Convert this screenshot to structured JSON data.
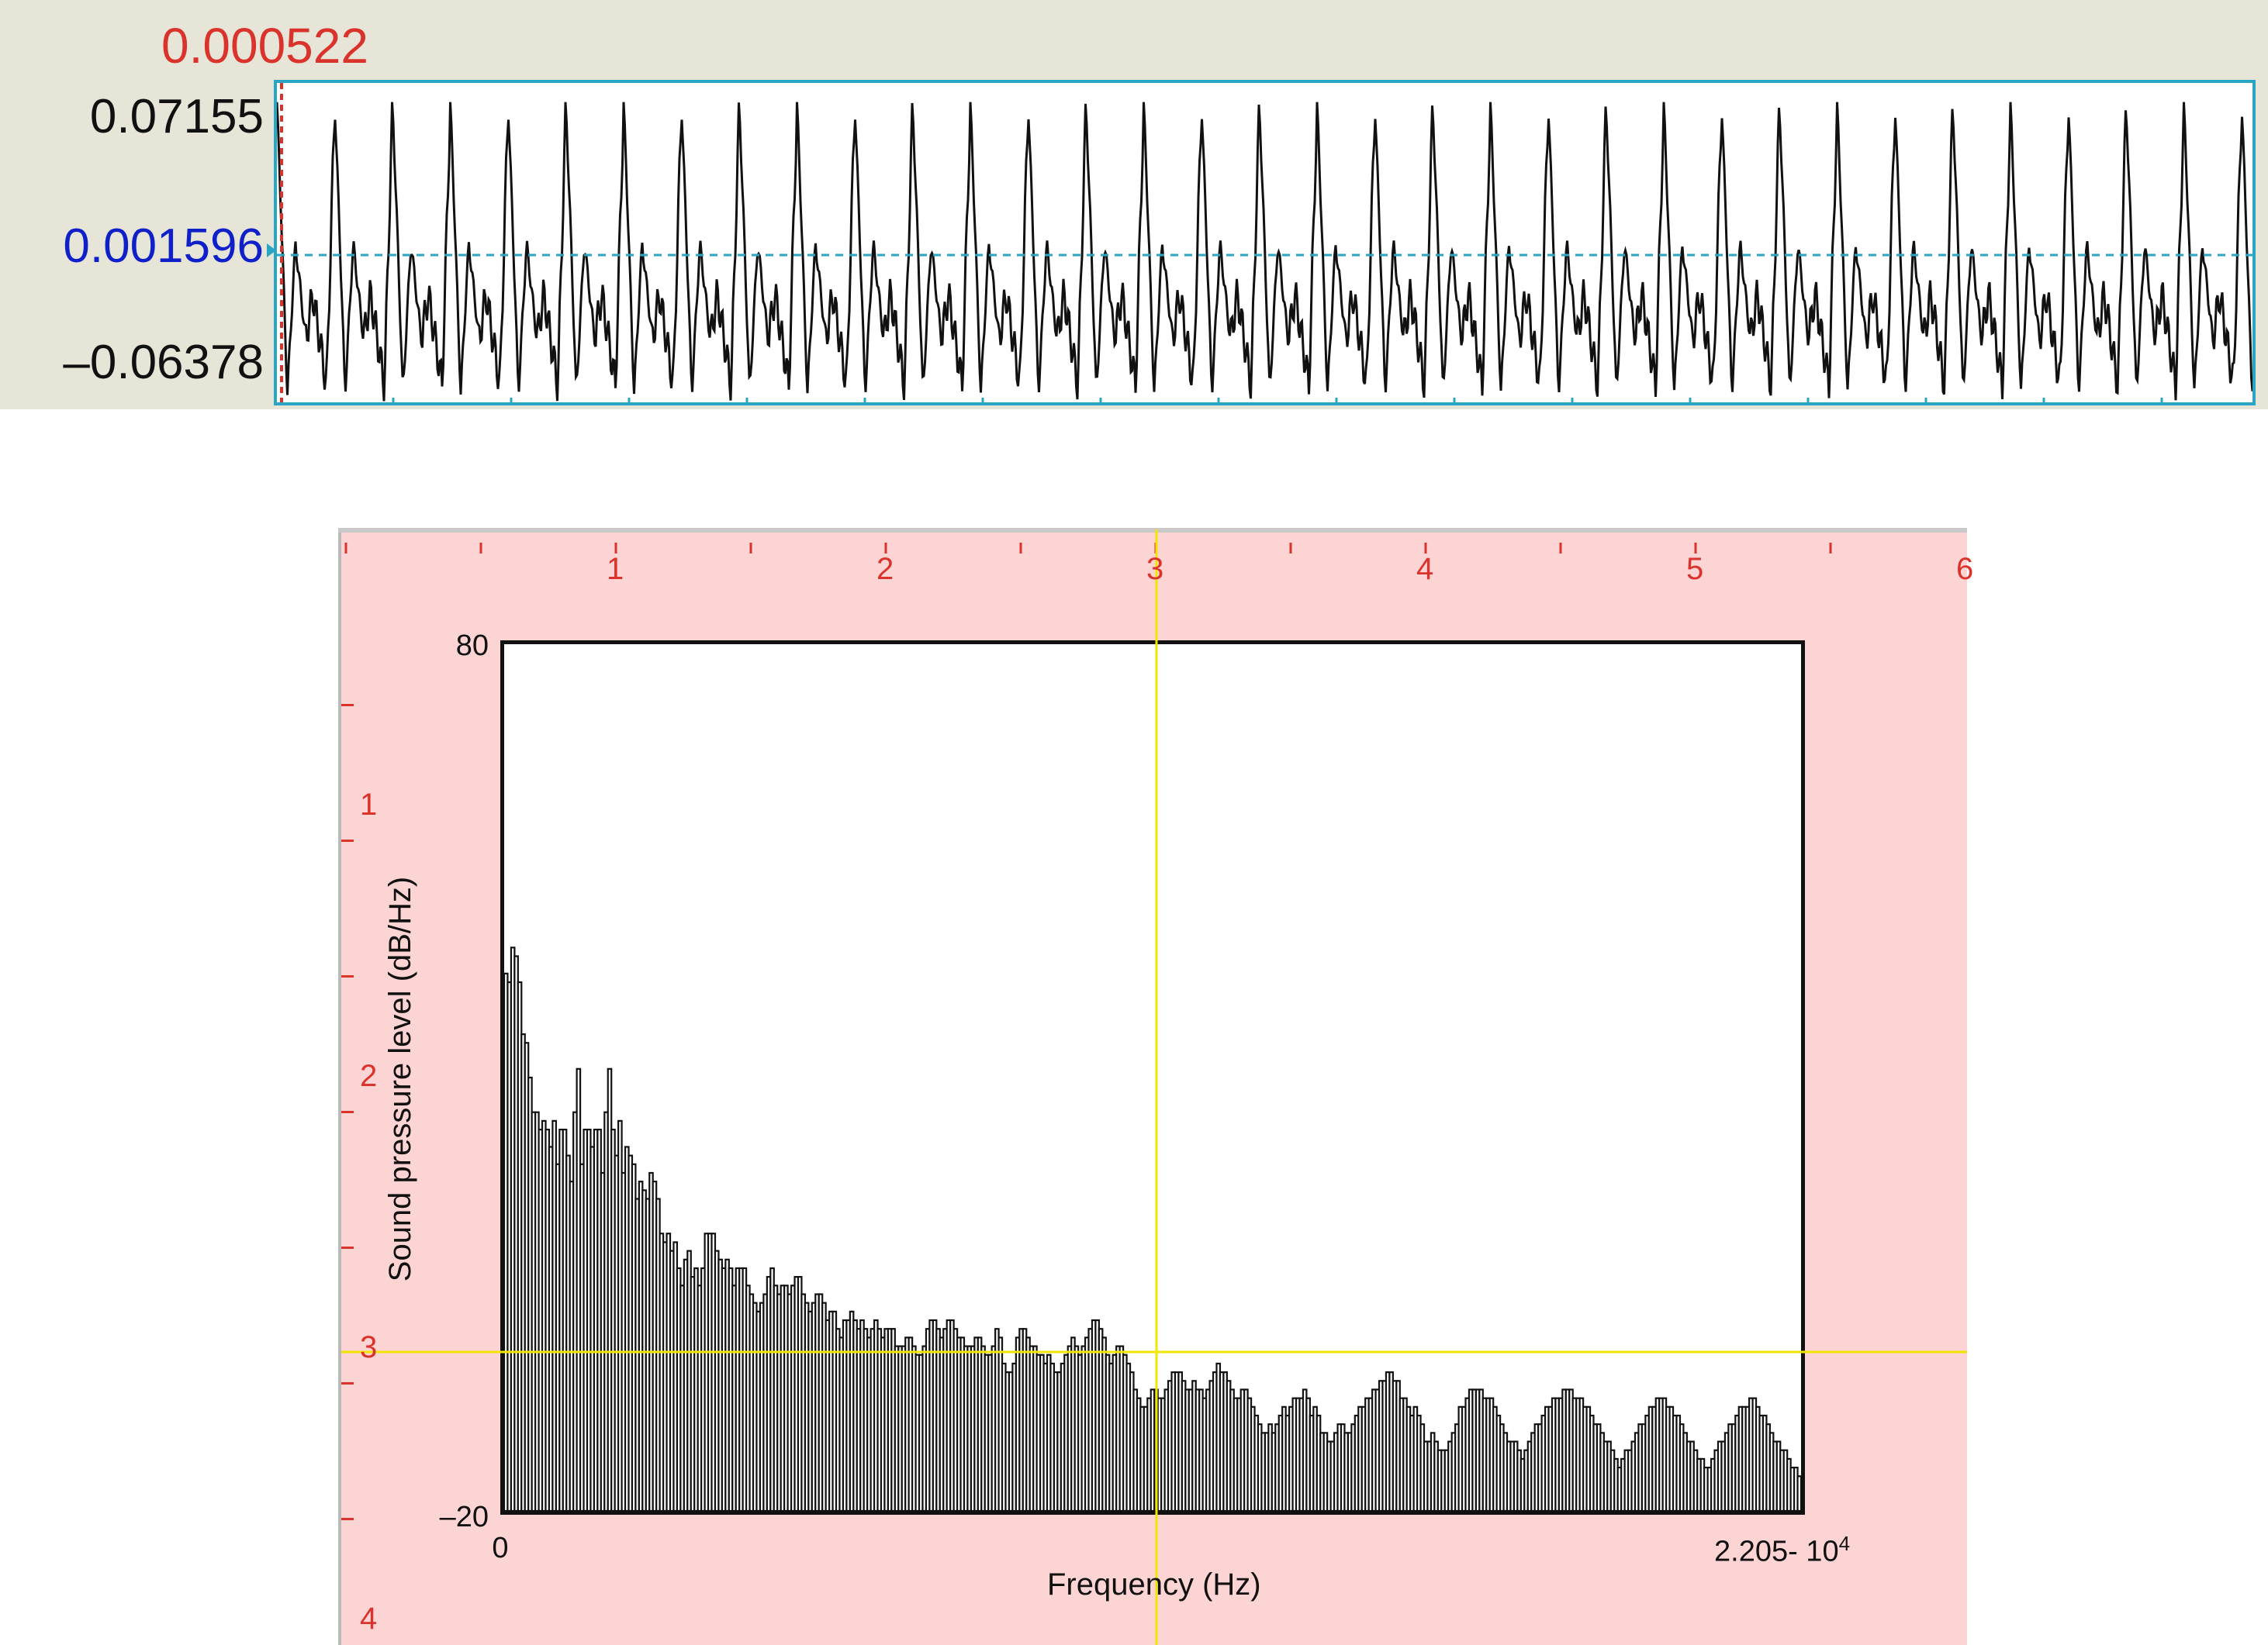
{
  "waveform": {
    "cursor_time": "0.000522",
    "y_max": "0.07155",
    "y_cursor": "0.001596",
    "y_min": "–0.06378"
  },
  "ruler": {
    "top_labels": [
      "1",
      "2",
      "3",
      "4",
      "5",
      "6"
    ],
    "left_labels": [
      "1",
      "2",
      "3",
      "4"
    ]
  },
  "colors": {
    "wave_bg": "#e6e5d8",
    "wave_border": "#2aa6c4",
    "cursor_red": "#d9332b",
    "cursor_blue": "#1020c8",
    "spec_bg": "#fdd4d4",
    "crosshair": "#f2e600"
  },
  "chart_data": {
    "type": "bar",
    "xlabel": "Frequency (Hz)",
    "ylabel": "Sound pressure level (dB/Hz)",
    "xlim": [
      0,
      22050
    ],
    "ylim": [
      -20,
      80
    ],
    "x_min_label": "0",
    "x_max_label": "2.205- 10",
    "x_max_exp": "4",
    "y_max_label": "80",
    "y_min_label": "–20",
    "bin_width_hz": 117,
    "values": [
      42,
      41,
      45,
      44,
      41,
      35,
      34,
      30,
      26,
      26,
      24,
      25,
      24,
      22,
      25,
      20,
      24,
      24,
      21,
      18,
      26,
      31,
      20,
      24,
      24,
      22,
      24,
      24,
      19,
      26,
      31,
      24,
      21,
      25,
      19,
      22,
      21,
      20,
      16,
      18,
      17,
      16,
      19,
      18,
      16,
      12,
      11,
      12,
      10,
      11,
      8,
      6,
      9,
      10,
      7,
      8,
      6,
      8,
      12,
      12,
      12,
      10,
      9,
      8,
      9,
      8,
      6,
      8,
      8,
      8,
      6,
      5,
      4,
      3,
      4,
      5,
      7,
      8,
      6,
      5,
      6,
      6,
      5,
      6,
      7,
      7,
      5,
      4,
      3,
      4,
      5,
      5,
      4,
      2,
      3,
      3,
      1,
      0,
      2,
      2,
      3,
      2,
      1,
      2,
      1,
      0,
      1,
      2,
      1,
      0,
      1,
      1,
      1,
      -1,
      -1,
      -1,
      0,
      0,
      -1,
      -2,
      -2,
      -1,
      1,
      2,
      2,
      1,
      0,
      1,
      2,
      2,
      1,
      0,
      0,
      -1,
      -1,
      -1,
      0,
      0,
      -1,
      -2,
      -2,
      -1,
      1,
      0,
      -3,
      -4,
      -4,
      -3,
      0,
      1,
      1,
      0,
      -1,
      -1,
      -2,
      -2,
      -3,
      -2,
      -3,
      -4,
      -4,
      -3,
      -2,
      -1,
      0,
      -1,
      -2,
      -1,
      0,
      1,
      2,
      2,
      1,
      0,
      -2,
      -3,
      -2,
      -1,
      -1,
      -2,
      -3,
      -4,
      -6,
      -7,
      -8,
      -8,
      -7,
      -6,
      -6,
      -7,
      -7,
      -6,
      -5,
      -4,
      -4,
      -4,
      -5,
      -6,
      -6,
      -5,
      -6,
      -6,
      -7,
      -6,
      -5,
      -4,
      -3,
      -4,
      -4,
      -5,
      -6,
      -7,
      -7,
      -6,
      -6,
      -7,
      -8,
      -9,
      -10,
      -11,
      -11,
      -10,
      -11,
      -10,
      -9,
      -8,
      -9,
      -8,
      -7,
      -7,
      -7,
      -6,
      -7,
      -9,
      -8,
      -9,
      -11,
      -11,
      -12,
      -12,
      -11,
      -10,
      -10,
      -11,
      -11,
      -10,
      -9,
      -8,
      -8,
      -7,
      -7,
      -6,
      -6,
      -5,
      -5,
      -4,
      -4,
      -5,
      -5,
      -7,
      -7,
      -8,
      -9,
      -8,
      -9,
      -10,
      -12,
      -12,
      -11,
      -12,
      -13,
      -13,
      -13,
      -12,
      -11,
      -10,
      -8,
      -8,
      -7,
      -6,
      -6,
      -6,
      -6,
      -7,
      -7,
      -7,
      -8,
      -9,
      -10,
      -11,
      -12,
      -12,
      -12,
      -13,
      -14,
      -13,
      -12,
      -11,
      -10,
      -10,
      -9,
      -8,
      -8,
      -7,
      -7,
      -7,
      -6,
      -6,
      -6,
      -7,
      -7,
      -7,
      -8,
      -8,
      -9,
      -10,
      -10,
      -11,
      -12,
      -12,
      -13,
      -14,
      -15,
      -14,
      -13,
      -13,
      -12,
      -11,
      -10,
      -10,
      -9,
      -8,
      -8,
      -7,
      -7,
      -7,
      -8,
      -8,
      -9,
      -9,
      -10,
      -11,
      -12,
      -12,
      -13,
      -14,
      -14,
      -15,
      -15,
      -14,
      -13,
      -12,
      -12,
      -11,
      -10,
      -10,
      -9,
      -8,
      -8,
      -8,
      -7,
      -7,
      -8,
      -9,
      -9,
      -10,
      -11,
      -12,
      -12,
      -13,
      -13,
      -14,
      -15,
      -15,
      -16
    ]
  }
}
